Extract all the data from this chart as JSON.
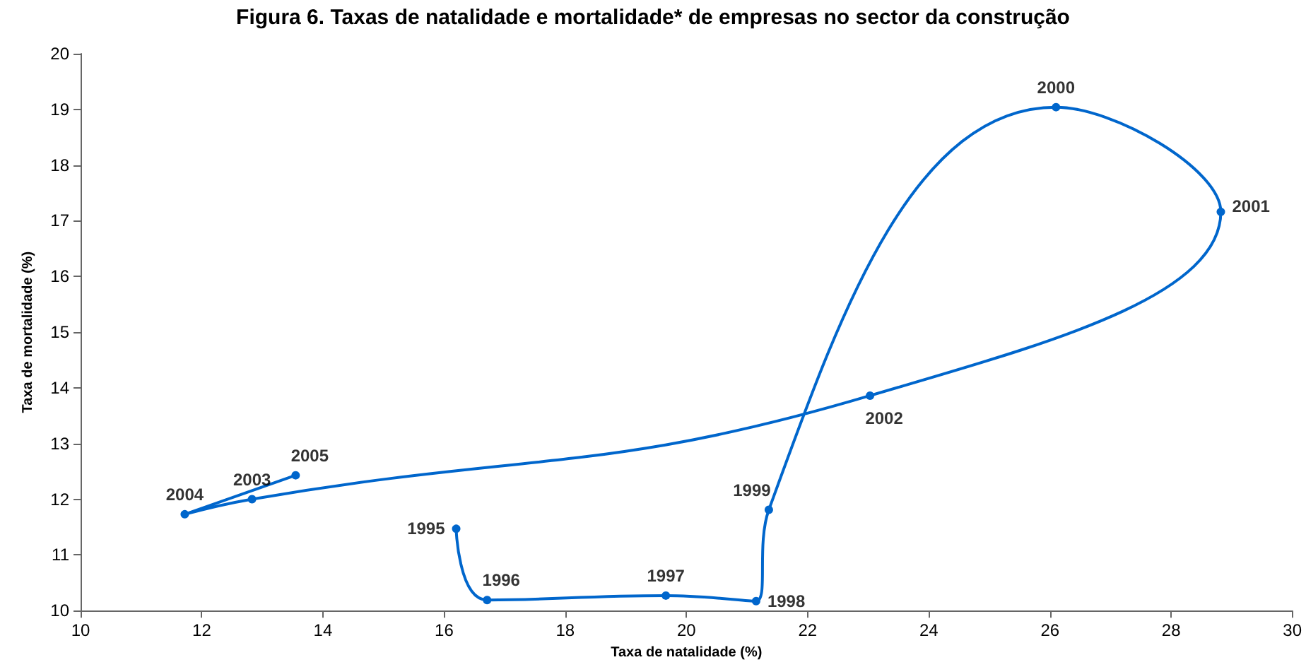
{
  "chart_data": {
    "type": "line",
    "title": "Figura 6. Taxas de natalidade e mortalidade* de empresas no sector da construção",
    "xlabel": "Taxa de natalidade (%)",
    "ylabel": "Taxa de mortalidade (%)",
    "x": [
      16.2,
      16.71,
      19.66,
      21.15,
      21.36,
      26.1,
      28.82,
      23.03,
      12.83,
      11.72,
      13.55
    ],
    "series": [
      {
        "color": "#0066cc",
        "values": [
          11.47,
          10.19,
          10.27,
          10.17,
          11.81,
          19.04,
          17.16,
          13.86,
          12.0,
          11.73,
          12.43
        ]
      }
    ],
    "annotations": [
      {
        "text": "1995",
        "x": 16.2,
        "y": 11.47
      },
      {
        "text": "1996",
        "x": 16.71,
        "y": 10.19
      },
      {
        "text": "1997",
        "x": 19.66,
        "y": 10.27
      },
      {
        "text": "1998",
        "x": 21.15,
        "y": 10.17
      },
      {
        "text": "1999",
        "x": 21.36,
        "y": 11.81
      },
      {
        "text": "2000",
        "x": 26.1,
        "y": 19.04
      },
      {
        "text": "2001",
        "x": 28.82,
        "y": 17.16
      },
      {
        "text": "2002",
        "x": 23.03,
        "y": 13.86
      },
      {
        "text": "2003",
        "x": 12.83,
        "y": 12.0
      },
      {
        "text": "2004",
        "x": 11.72,
        "y": 11.73
      },
      {
        "text": "2005",
        "x": 13.55,
        "y": 12.43
      }
    ],
    "xlim": [
      10,
      30
    ],
    "xticks": [
      10,
      12,
      14,
      16,
      18,
      20,
      22,
      24,
      26,
      28,
      30
    ],
    "ylim": [
      10,
      20
    ],
    "yticks": [
      10,
      11,
      12,
      13,
      14,
      15,
      16,
      17,
      18,
      19,
      20
    ],
    "grid": false,
    "marker": "circle",
    "line_style": "solid"
  }
}
